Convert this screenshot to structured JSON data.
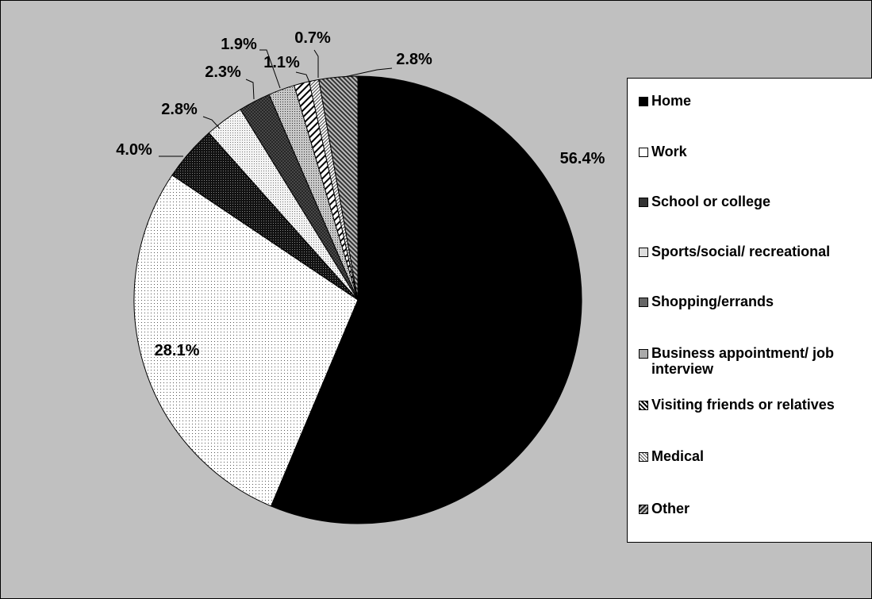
{
  "chart_data": {
    "type": "pie",
    "categories": [
      "Home",
      "Work",
      "School or college",
      "Sports/social/ recreational",
      "Shopping/errands",
      "Business appointment/ job interview",
      "Visiting friends or relatives",
      "Medical",
      "Other"
    ],
    "values": [
      56.4,
      28.1,
      4.0,
      2.8,
      2.3,
      1.9,
      1.1,
      0.7,
      2.8
    ],
    "data_labels": [
      "56.4%",
      "28.1%",
      "4.0%",
      "2.8%",
      "2.3%",
      "1.9%",
      "1.1%",
      "0.7%",
      "2.8%"
    ],
    "start_angle_deg": 0,
    "direction": "clockwise",
    "legend_position": "right",
    "patterns": [
      "solid-black",
      "dotted-white",
      "dark-dots",
      "light-dots",
      "dark-crosshatch",
      "medium-dots",
      "diagonal-stripes",
      "fine-diagonal",
      "dense-diagonal"
    ]
  }
}
